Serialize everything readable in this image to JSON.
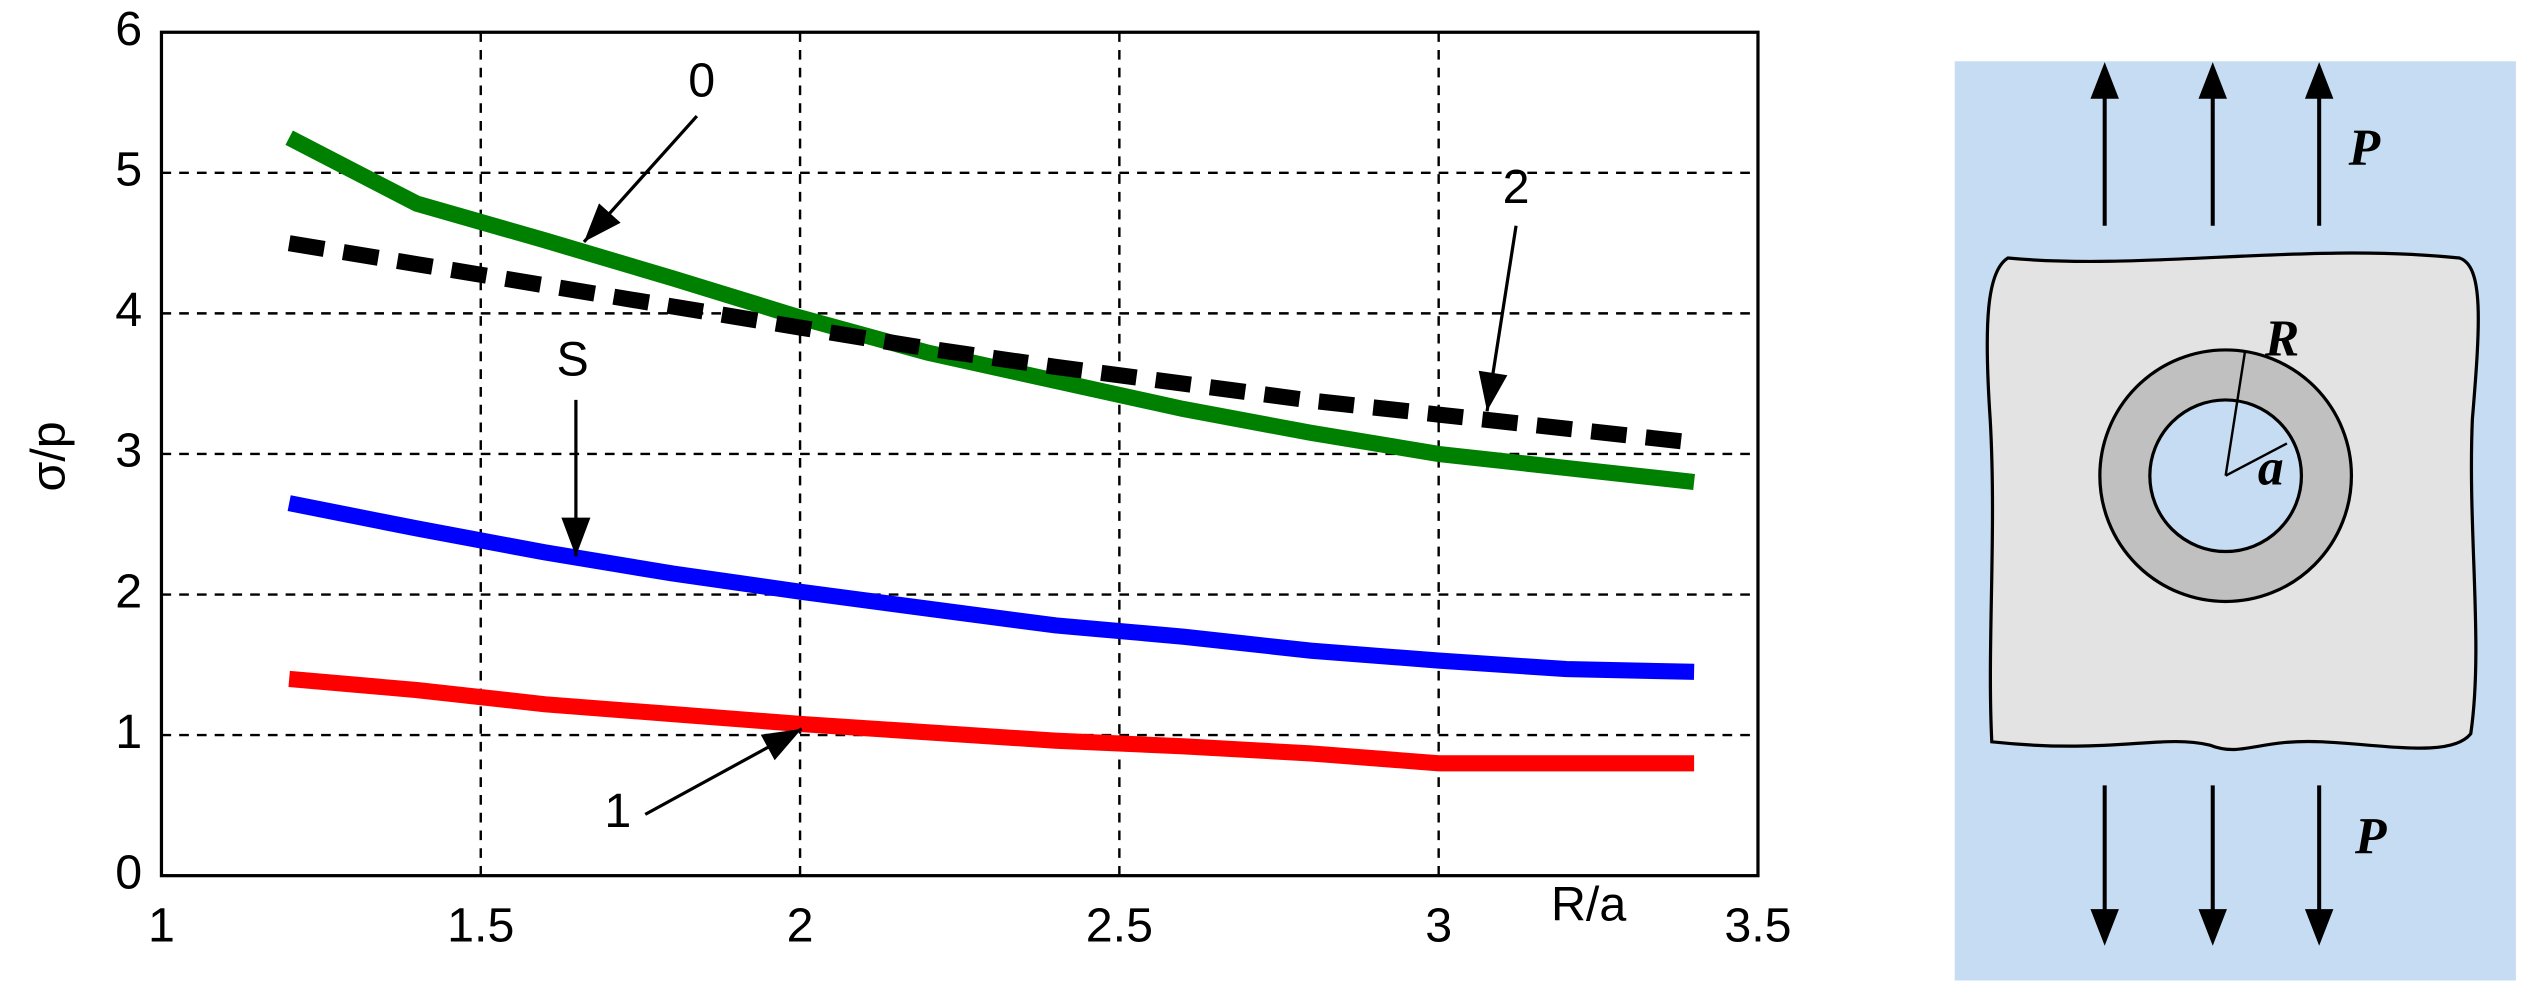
{
  "chart_data": {
    "type": "line",
    "x_label": "R/a",
    "y_label": "σ/p",
    "x": [
      1.2,
      1.4,
      1.6,
      1.8,
      2.0,
      2.2,
      2.4,
      2.6,
      2.8,
      3.0,
      3.2,
      3.4
    ],
    "series": [
      {
        "name": "0",
        "color": "#008000",
        "dashed": false,
        "values": [
          5.25,
          4.78,
          4.52,
          4.25,
          3.97,
          3.72,
          3.52,
          3.32,
          3.15,
          3.0,
          2.9,
          2.8
        ]
      },
      {
        "name": "2",
        "color": "#000000",
        "dashed": true,
        "values": [
          4.5,
          4.35,
          4.2,
          4.05,
          3.9,
          3.75,
          3.62,
          3.5,
          3.38,
          3.28,
          3.18,
          3.08
        ]
      },
      {
        "name": "S",
        "color": "#0000ff",
        "dashed": false,
        "values": [
          2.65,
          2.47,
          2.3,
          2.15,
          2.02,
          1.9,
          1.78,
          1.7,
          1.6,
          1.53,
          1.47,
          1.45
        ]
      },
      {
        "name": "1",
        "color": "#ff0000",
        "dashed": false,
        "values": [
          1.4,
          1.32,
          1.22,
          1.15,
          1.08,
          1.02,
          0.96,
          0.92,
          0.87,
          0.8,
          0.8,
          0.8
        ]
      }
    ],
    "xlim": [
      1,
      3.5
    ],
    "xticks": [
      1,
      1.5,
      2,
      2.5,
      3,
      3.5
    ],
    "ylim": [
      0,
      6
    ],
    "yticks": [
      0,
      1,
      2,
      3,
      4,
      5,
      6
    ],
    "grid": true
  },
  "diagram": {
    "labels": [
      "P",
      "P",
      "R",
      "a"
    ]
  }
}
